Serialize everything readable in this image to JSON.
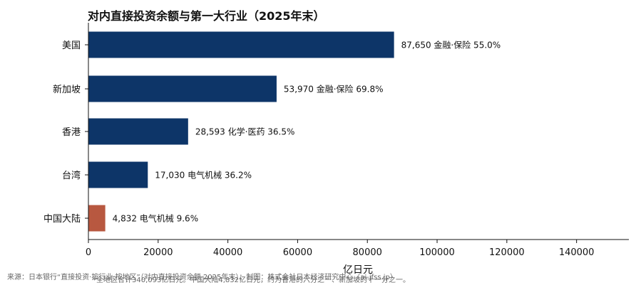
{
  "chart_data": {
    "type": "bar",
    "orientation": "horizontal",
    "title": "对内直接投资余额与第一大行业（2025年末）",
    "xlabel": "亿日元",
    "ylabel": "",
    "xlim": [
      0,
      155000
    ],
    "xticks": [
      "0",
      "20000",
      "40000",
      "60000",
      "80000",
      "100000",
      "120000",
      "140000"
    ],
    "categories": [
      "美国",
      "新加坡",
      "香港",
      "台湾",
      "中国大陆"
    ],
    "values": [
      87650,
      53970,
      28593,
      17030,
      4832
    ],
    "bar_labels": [
      "87,650  金融·保险 55.0%",
      "53,970  金融·保险 69.8%",
      "28,593  化学·医药 36.5%",
      "17,030  电气机械 36.2%",
      "4,832  电气机械 9.6%"
    ],
    "colors": [
      "#0d3568",
      "#0d3568",
      "#0d3568",
      "#0d3568",
      "#b85840"
    ],
    "legend": "none",
    "grid": false
  },
  "source": "来源：日本银行“直接投资·按行业·按地区”（对内直接投资余额 2025年末）；制图：株式会社日本经济研究中心（ai-jfss.jp）",
  "note": "*全地区合计340,093亿日元。中国大陆4,832亿日元，约为香港的六分之一、新加坡的十一分之一。"
}
